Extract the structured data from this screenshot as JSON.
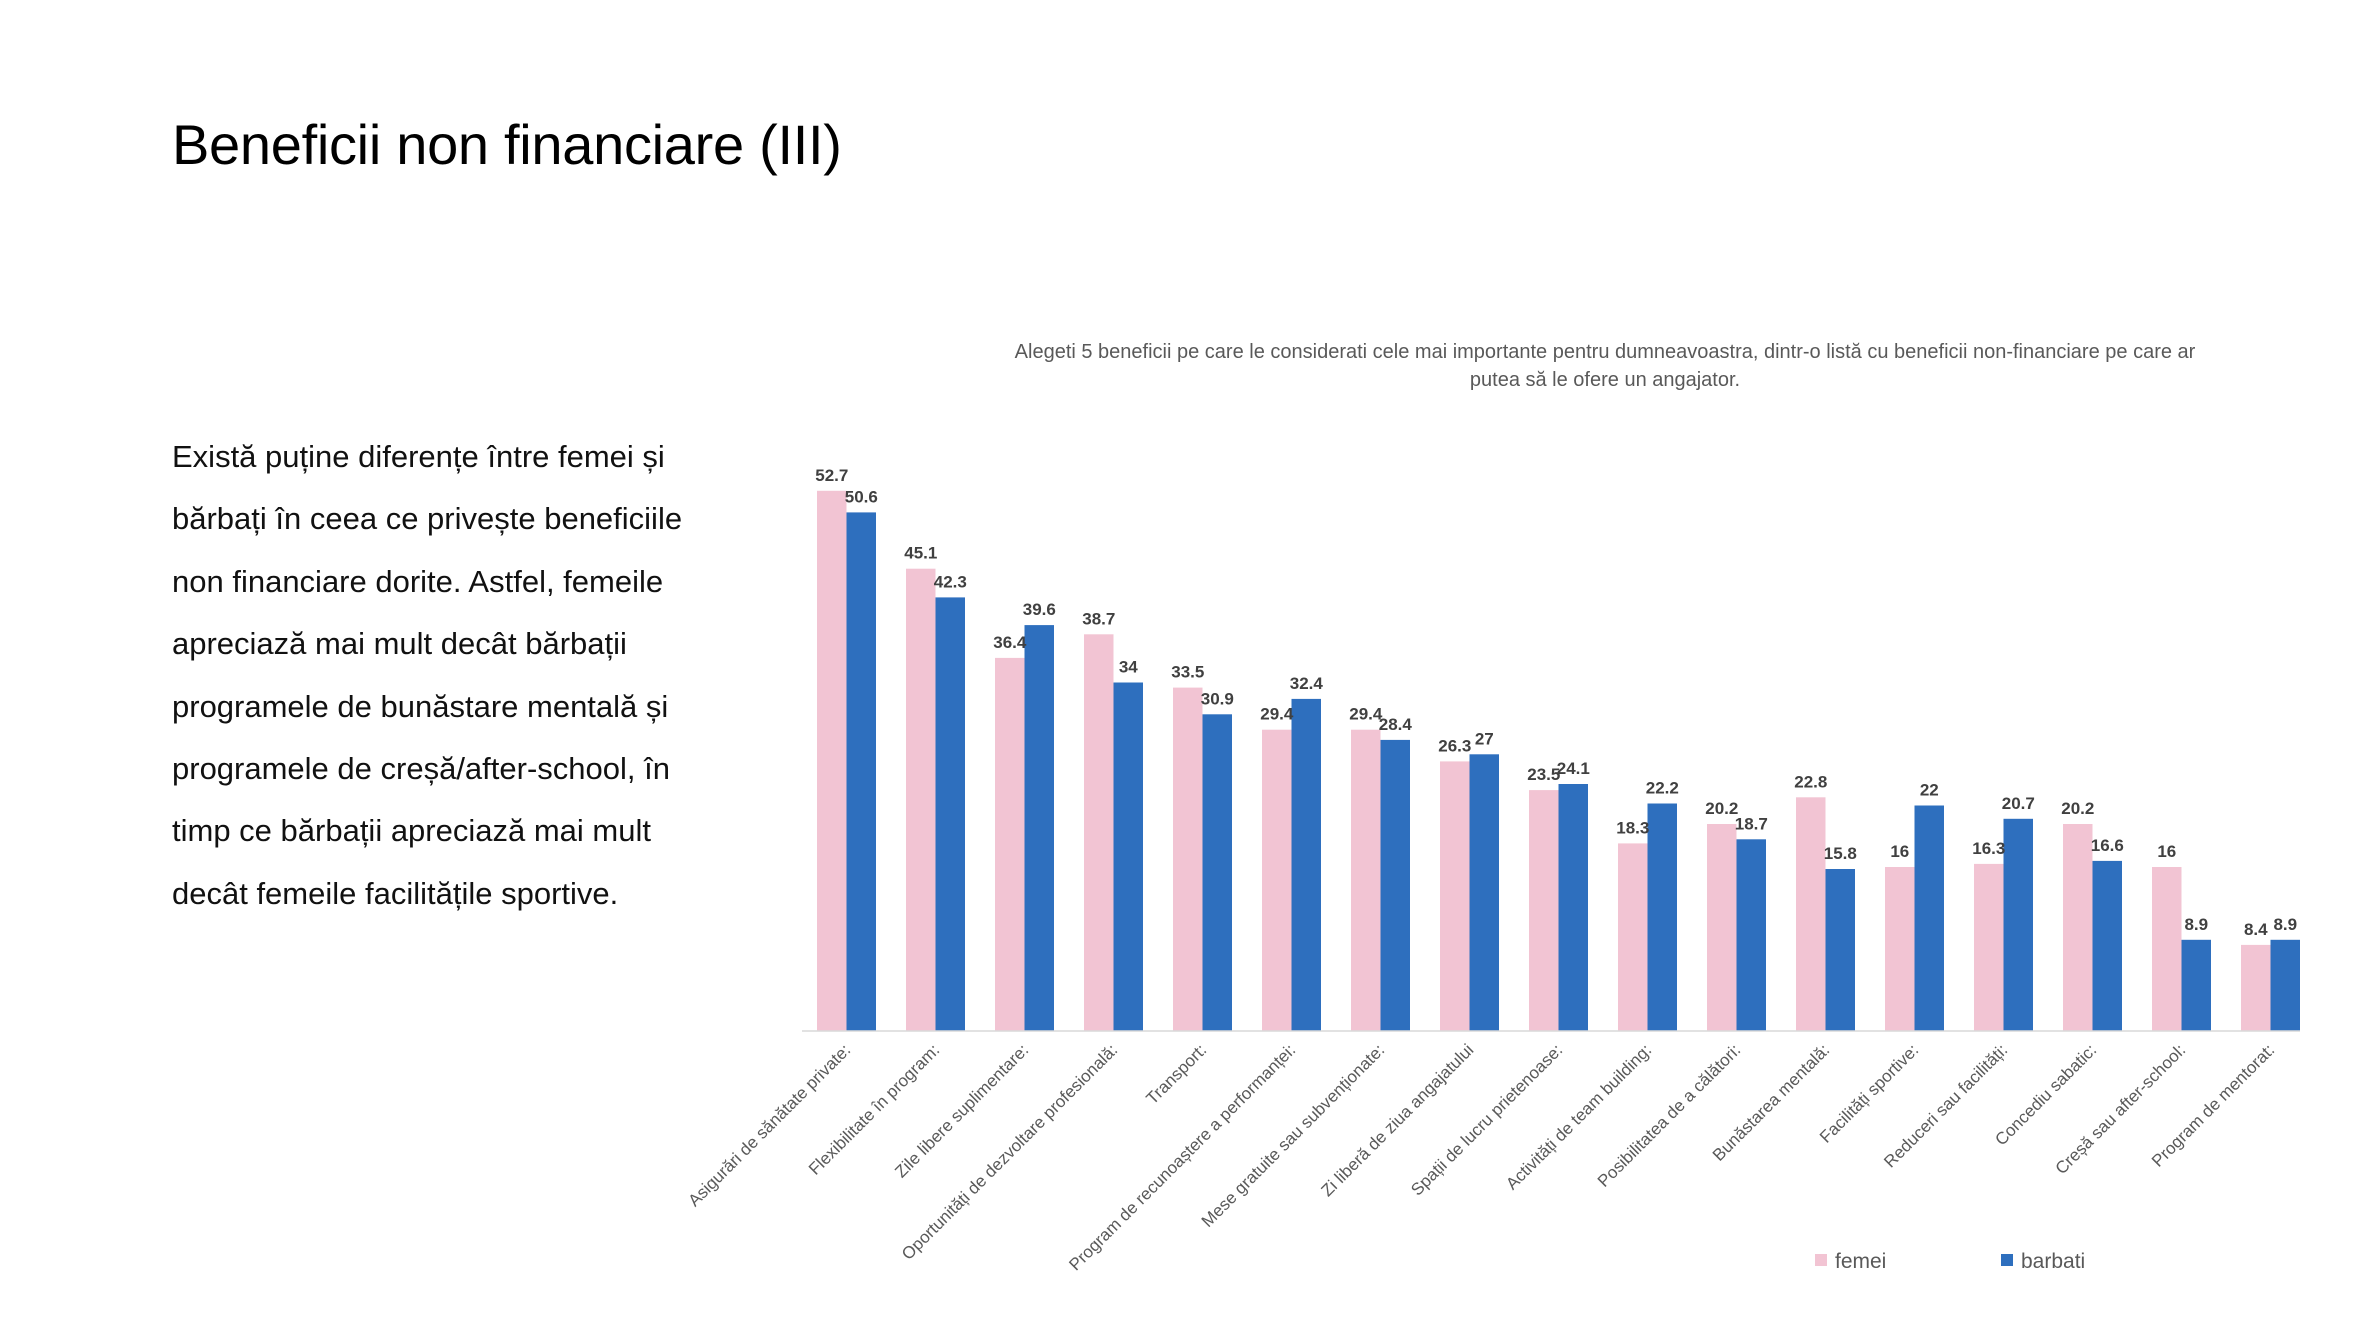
{
  "slide": {
    "title": "Beneficii non financiare (III)",
    "body_lines": [
      "Există puține diferențe între femei și",
      "bărbați în ceea ce privește beneficiile",
      "non financiare dorite. Astfel, femeile",
      "apreciază mai mult decât bărbații",
      "programele de bunăstare mentală și",
      "programele de creșă/after-school,  în",
      "timp ce bărbații apreciază mai mult",
      "decât femeile facilitățile sportive."
    ]
  },
  "chart_data": {
    "type": "bar",
    "title": "Alegeti 5 beneficii pe care le considerati cele mai importante pentru dumneavoastra, dintr-o listă cu beneficii non-financiare pe care ar putea să le ofere un angajator.",
    "title_lines": [
      "Alegeti 5 beneficii pe care le considerati cele mai importante pentru dumneavoastra, dintr-o listă cu beneficii non-financiare pe care ar",
      "putea să le ofere un angajator."
    ],
    "categories": [
      "Asigurări de sănătate private:",
      "Flexibilitate în program:",
      "Zile libere suplimentare:",
      "Oportunități de dezvoltare profesională:",
      "Transport:",
      "Program de recunoaștere a performanței:",
      "Mese gratuite sau subvenționate:",
      "Zi liberă de ziua angajatului",
      "Spații de lucru prietenoase:",
      "Activități de team building:",
      "Posibilitatea de a călători:",
      "Bunăstarea mentală:",
      "Facilități sportive:",
      "Reduceri sau facilități:",
      "Concediu sabatic:",
      "Creșă sau after-school:",
      "Program de mentorat:"
    ],
    "series": [
      {
        "name": "femei",
        "color": "#F2C4D3",
        "values": [
          52.7,
          45.1,
          36.4,
          38.7,
          33.5,
          29.4,
          29.4,
          26.3,
          23.5,
          18.3,
          20.2,
          22.8,
          16,
          16.3,
          20.2,
          16,
          8.4
        ]
      },
      {
        "name": "barbati",
        "color": "#2E6FBE",
        "values": [
          50.6,
          42.3,
          39.6,
          34,
          30.9,
          32.4,
          28.4,
          27,
          24.1,
          22.2,
          18.7,
          15.8,
          22,
          20.7,
          16.6,
          8.9,
          8.9
        ]
      }
    ],
    "ylim": [
      0,
      55
    ],
    "grid": false,
    "legend": "bottom-right"
  }
}
